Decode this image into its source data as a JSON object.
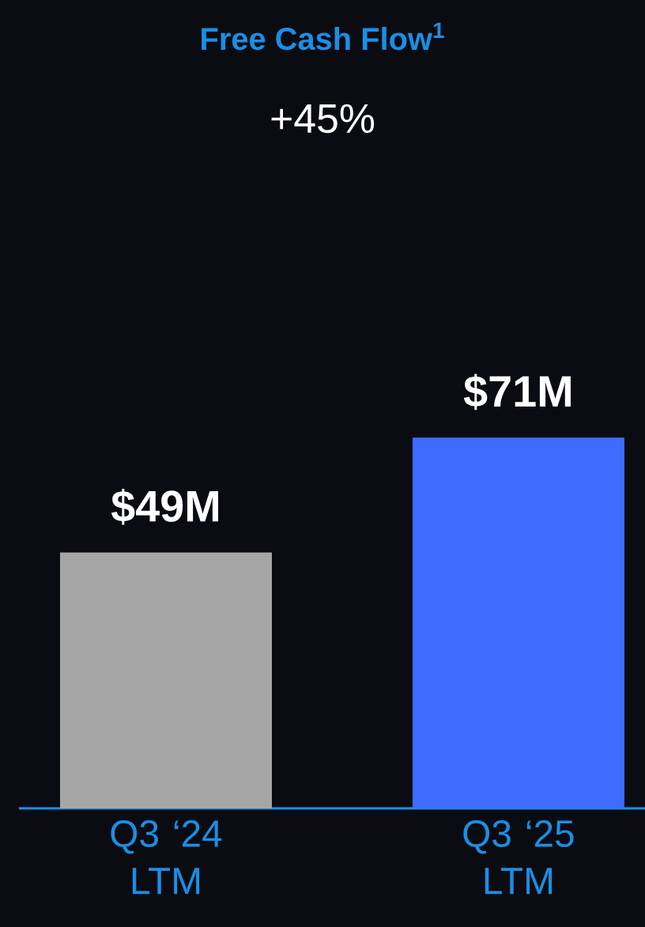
{
  "chart_data": {
    "type": "bar",
    "title": "Free Cash Flow$^{1}$",
    "subtitle": "+45%",
    "categories": [
      "Q3 ‘24 LTM",
      "Q3 ‘25 LTM"
    ],
    "values": [
      49,
      71
    ],
    "colors": [
      "#a6a6a6",
      "#3d6cff"
    ],
    "value_labels": [
      "$49M",
      "$71M"
    ]
  }
}
